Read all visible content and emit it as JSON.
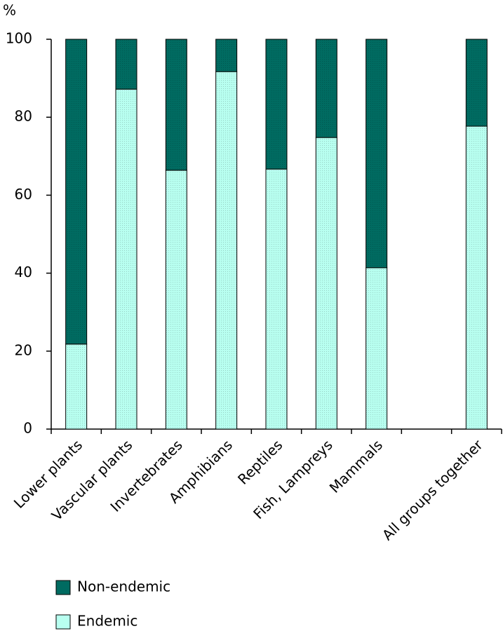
{
  "chart_data": {
    "type": "stacked_bar",
    "y_label": "%",
    "categories": [
      "Lower plants",
      "Vascular plants",
      "Invertebrates",
      "Amphibians",
      "Reptiles",
      "Fish, Lampreys",
      "Mammals",
      null,
      "All groups together"
    ],
    "series": [
      {
        "name": "Non-endemic",
        "color": "#006b61",
        "values": [
          78.2,
          12.8,
          33.6,
          8.3,
          33.3,
          25.2,
          58.6,
          null,
          22.3
        ]
      },
      {
        "name": "Endemic",
        "color": "#b8fff0",
        "values": [
          21.8,
          87.2,
          66.4,
          91.7,
          66.7,
          74.8,
          41.4,
          null,
          77.7
        ]
      }
    ],
    "ylim": [
      0,
      100
    ],
    "yticks": [
      0,
      20,
      40,
      60,
      80,
      100
    ],
    "grid": false
  }
}
